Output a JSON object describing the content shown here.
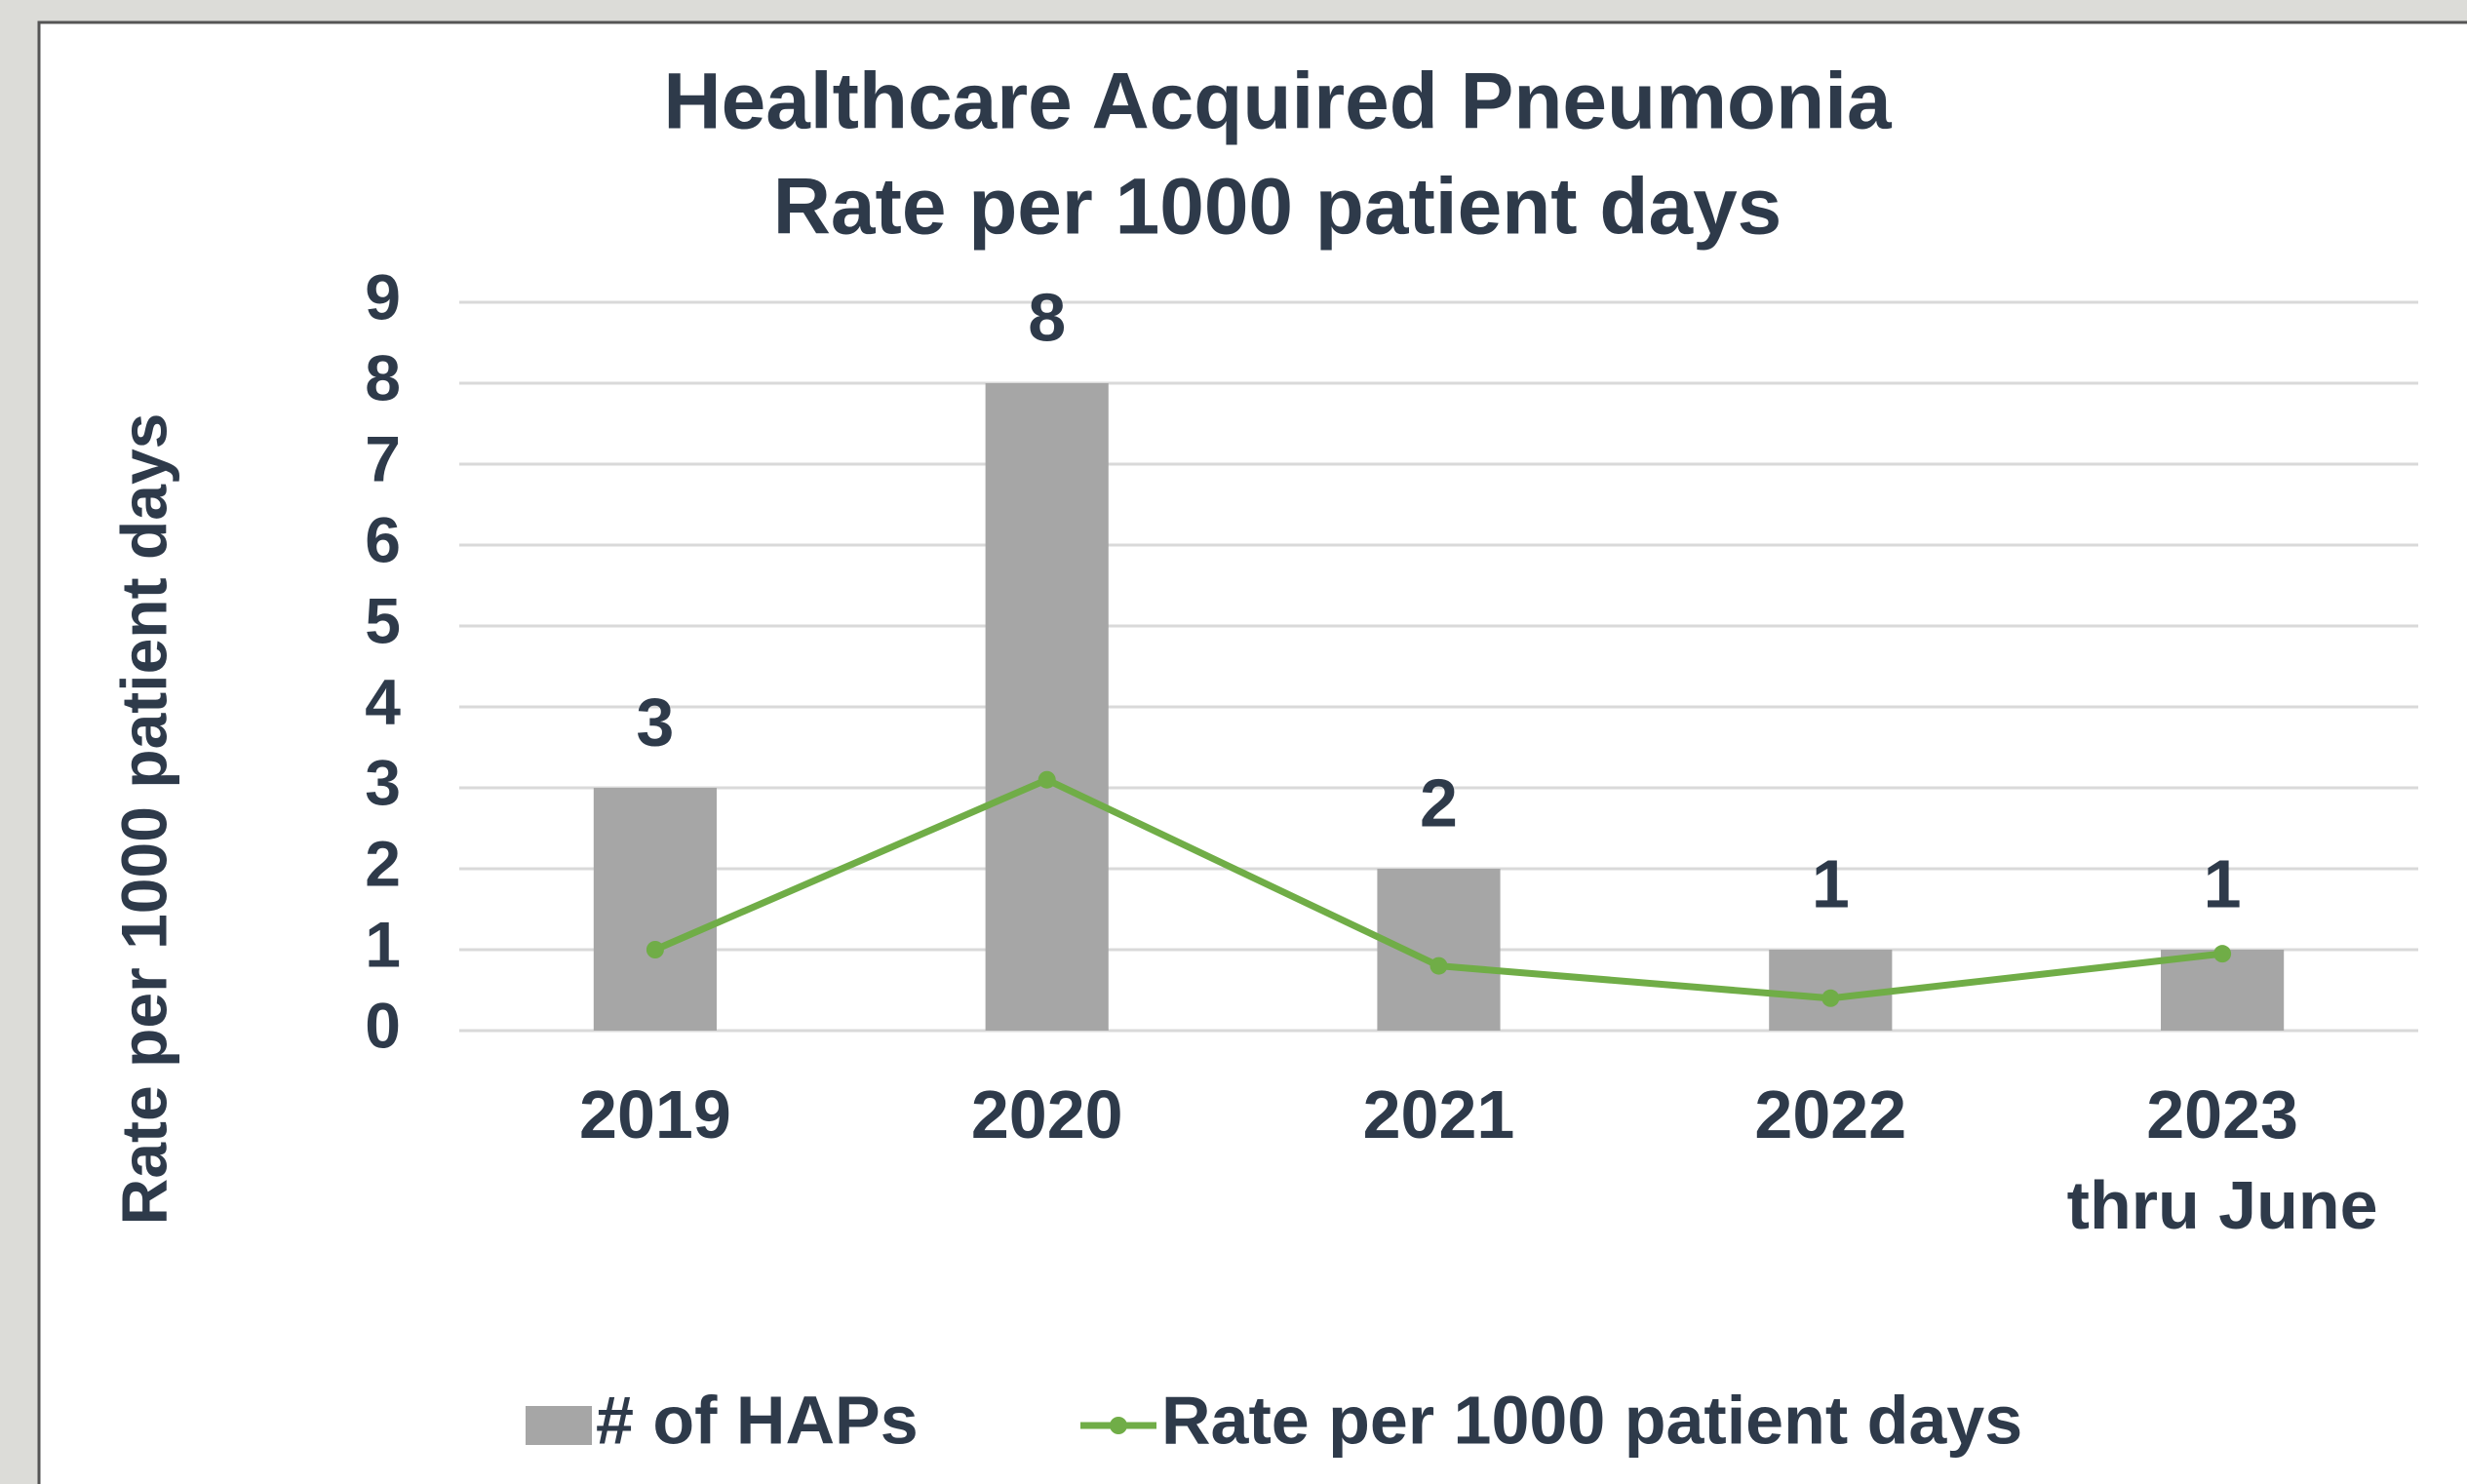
{
  "chart_data": {
    "type": "bar",
    "title": "Healthcare Acquired Pneumonia",
    "subtitle": "Rate per 1000 patient days",
    "y_label": "Rate per 1000 patient days",
    "categories": [
      "2019",
      "2020",
      "2021",
      "2022",
      "2023\nthru June"
    ],
    "series": [
      {
        "name": "# of HAPs",
        "color": "#a6a6a6",
        "type": "bar",
        "values": [
          3,
          8,
          2,
          1,
          1
        ],
        "data_labels": true
      },
      {
        "name": "Rate per 1000 patient days",
        "color": "#70ad47",
        "type": "line",
        "values": [
          1.0,
          3.1,
          0.8,
          0.4,
          0.95
        ]
      }
    ],
    "ylim": [
      0,
      9
    ],
    "yticks": [
      0,
      1,
      2,
      3,
      4,
      5,
      6,
      7,
      8,
      9
    ],
    "grid": true,
    "legend": "bottom"
  }
}
